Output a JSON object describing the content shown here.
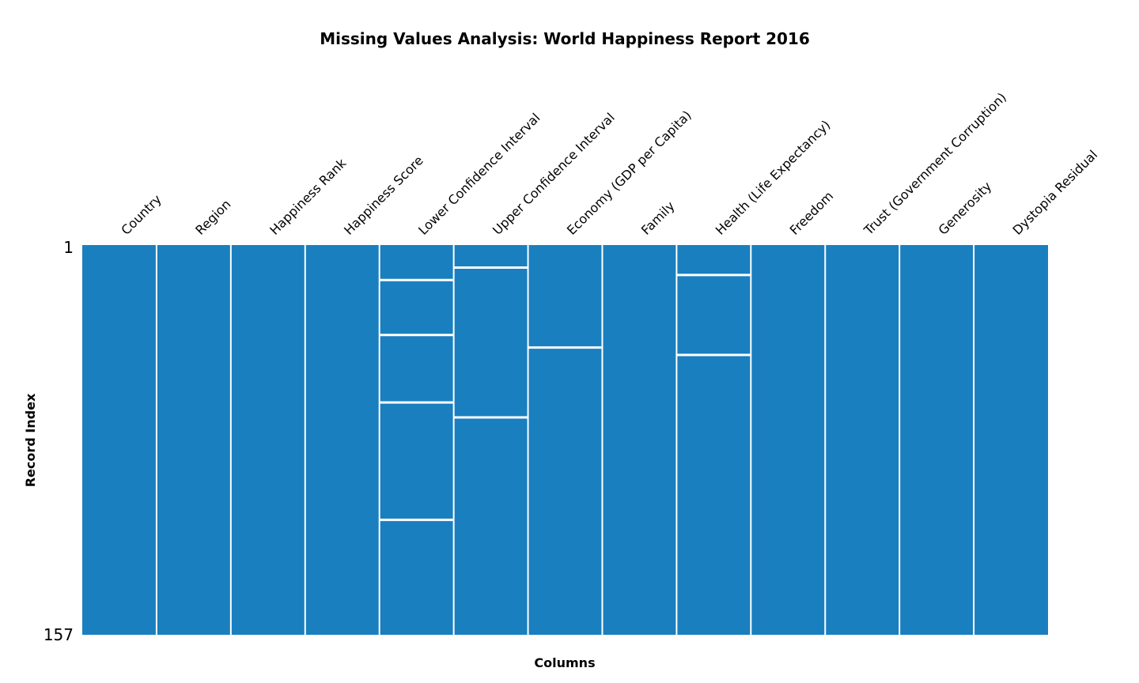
{
  "chart_data": {
    "type": "heatmap",
    "title": "Missing Values Analysis: World Happiness Report 2016",
    "xlabel": "Columns",
    "ylabel": "Record Index",
    "row_range": [
      1,
      157
    ],
    "row_tick_labels": [
      "1",
      "157"
    ],
    "columns": [
      {
        "name": "Country",
        "missing_rows": []
      },
      {
        "name": "Region",
        "missing_rows": []
      },
      {
        "name": "Happiness Rank",
        "missing_rows": []
      },
      {
        "name": "Happiness Score",
        "missing_rows": []
      },
      {
        "name": "Lower Confidence Interval",
        "missing_rows": [
          15,
          37,
          64,
          111
        ]
      },
      {
        "name": "Upper Confidence Interval",
        "missing_rows": [
          10,
          70
        ]
      },
      {
        "name": "Economy (GDP per Capita)",
        "missing_rows": [
          42
        ]
      },
      {
        "name": "Family",
        "missing_rows": []
      },
      {
        "name": "Health (Life Expectancy)",
        "missing_rows": [
          13,
          45
        ]
      },
      {
        "name": "Freedom",
        "missing_rows": []
      },
      {
        "name": "Trust (Government Corruption)",
        "missing_rows": []
      },
      {
        "name": "Generosity",
        "missing_rows": []
      },
      {
        "name": "Dystopia Residual",
        "missing_rows": []
      }
    ],
    "present_color": "#1a7fbf",
    "missing_color": "#ffffff",
    "grid": false
  }
}
